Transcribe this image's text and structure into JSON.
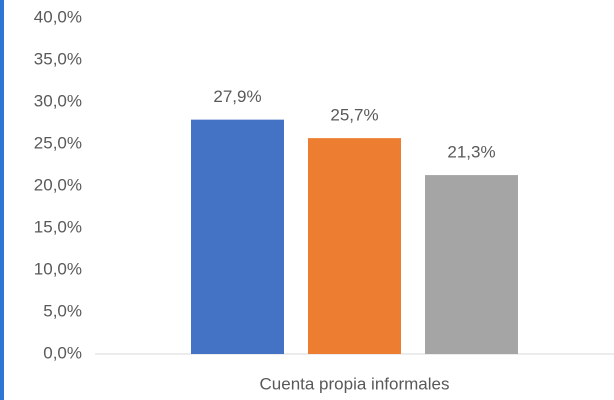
{
  "chart_data": {
    "type": "bar",
    "categories": [
      "Cuenta propia informales"
    ],
    "series": [
      {
        "color": "#4472c4",
        "values": [
          27.9
        ],
        "value_labels": [
          "27,9%"
        ]
      },
      {
        "color": "#ed7d31",
        "values": [
          25.7
        ],
        "value_labels": [
          "25,7%"
        ]
      },
      {
        "color": "#a5a5a5",
        "values": [
          21.3
        ],
        "value_labels": [
          "21,3%"
        ]
      }
    ],
    "ylim": [
      0,
      40
    ],
    "yticks": [
      {
        "value": 0,
        "label": "0,0%"
      },
      {
        "value": 5,
        "label": "5,0%"
      },
      {
        "value": 10,
        "label": "10,0%"
      },
      {
        "value": 15,
        "label": "15,0%"
      },
      {
        "value": 20,
        "label": "20,0%"
      },
      {
        "value": 25,
        "label": "25,0%"
      },
      {
        "value": 30,
        "label": "30,0%"
      },
      {
        "value": 35,
        "label": "35,0%"
      },
      {
        "value": 40,
        "label": "40,0%"
      }
    ],
    "grid": false
  }
}
